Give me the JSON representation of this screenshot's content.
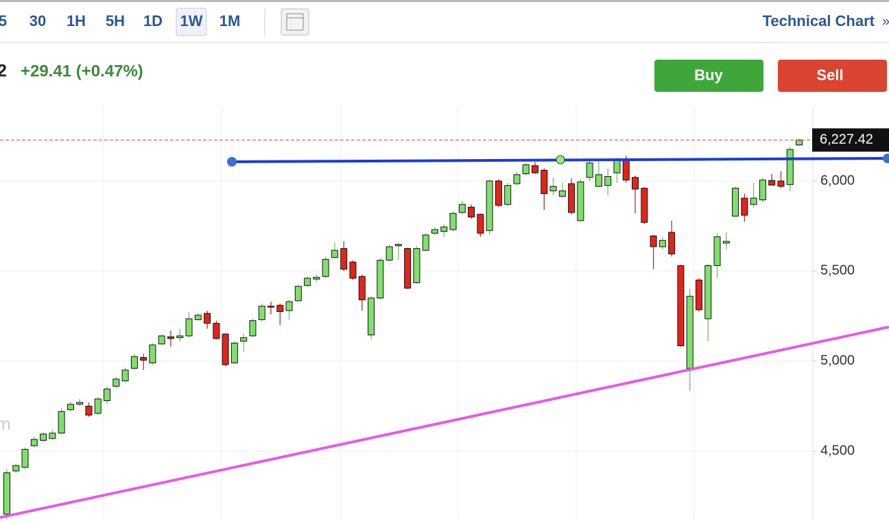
{
  "toolbar": {
    "intervals": [
      "5",
      "30",
      "1H",
      "5H",
      "1D",
      "1W",
      "1M"
    ],
    "active": "1W",
    "link": "Technical Chart",
    "more": "»"
  },
  "quote": {
    "last_fragment": "2",
    "change": "+29.41 (+0.47%)"
  },
  "actions": {
    "buy": "Buy",
    "sell": "Sell"
  },
  "watermark": "m",
  "chart_data": {
    "type": "candlestick",
    "up_color": "#7fe06c",
    "down_color": "#e3241b",
    "up_wick": "#7fb86f",
    "down_wick": "#b0302a",
    "ylim": [
      4120,
      6415
    ],
    "yticks": [
      {
        "value": 4500,
        "label": "4,500"
      },
      {
        "value": 5000,
        "label": "5,000"
      },
      {
        "value": 5500,
        "label": "5,500"
      },
      {
        "value": 6000,
        "label": "6,000"
      }
    ],
    "grid": true,
    "last_price": {
      "value": 6227.42,
      "label": "6,227.42"
    },
    "open": [
      4150,
      4390,
      4410,
      4530,
      4560,
      4570,
      4600,
      4730,
      4760,
      4750,
      4710,
      4780,
      4860,
      4890,
      4960,
      5020,
      4990,
      5095,
      5135,
      5130,
      5140,
      5230,
      5265,
      5210,
      5150,
      4990,
      5110,
      5140,
      5230,
      5305,
      5310,
      5280,
      5335,
      5420,
      5455,
      5470,
      5575,
      5625,
      5550,
      5470,
      5145,
      5350,
      5560,
      5640,
      5625,
      5435,
      5615,
      5710,
      5720,
      5730,
      5825,
      5855,
      5815,
      5725,
      6000,
      5870,
      5985,
      6040,
      6085,
      6060,
      5945,
      5915,
      5985,
      5780,
      6020,
      5970,
      5975,
      6045,
      6120,
      6020,
      5960,
      5695,
      5635,
      5715,
      5530,
      4960,
      5450,
      5235,
      5530,
      5655,
      5805,
      5905,
      5870,
      5895,
      6003,
      6000,
      5980,
      6200
    ],
    "high": [
      4400,
      4430,
      4520,
      4580,
      4605,
      4620,
      4740,
      4775,
      4790,
      4770,
      4800,
      4860,
      4910,
      4965,
      5040,
      5040,
      5100,
      5150,
      5170,
      5180,
      5270,
      5265,
      5280,
      5225,
      5155,
      5110,
      5150,
      5235,
      5320,
      5330,
      5320,
      5340,
      5425,
      5470,
      5480,
      5580,
      5660,
      5665,
      5560,
      5480,
      5360,
      5570,
      5645,
      5655,
      5630,
      5640,
      5710,
      5745,
      5760,
      5830,
      5890,
      5870,
      5820,
      6010,
      6010,
      5990,
      6050,
      6100,
      6105,
      6070,
      6020,
      5990,
      6015,
      6010,
      6115,
      6110,
      6070,
      6130,
      6140,
      6030,
      5965,
      5700,
      5690,
      5780,
      5535,
      5400,
      5460,
      5540,
      5710,
      5715,
      5970,
      5930,
      5990,
      6020,
      6040,
      6055,
      6190,
      6235
    ],
    "low": [
      4120,
      4380,
      4400,
      4520,
      4550,
      4560,
      4595,
      4720,
      4750,
      4690,
      4700,
      4760,
      4850,
      4880,
      4950,
      4950,
      4980,
      5090,
      5080,
      5110,
      5130,
      5225,
      5180,
      5120,
      4970,
      4985,
      5050,
      5135,
      5220,
      5260,
      5200,
      5230,
      5330,
      5410,
      5440,
      5460,
      5570,
      5500,
      5450,
      5280,
      5120,
      5345,
      5555,
      5560,
      5400,
      5430,
      5610,
      5700,
      5690,
      5720,
      5815,
      5790,
      5690,
      5700,
      5855,
      5860,
      5975,
      6030,
      6040,
      5840,
      5920,
      5905,
      5815,
      5775,
      6000,
      5965,
      5920,
      5990,
      5990,
      5820,
      5760,
      5510,
      5620,
      5580,
      5080,
      4835,
      5275,
      5110,
      5460,
      5620,
      5800,
      5775,
      5850,
      5880,
      5975,
      5960,
      5945,
      6195
    ],
    "close": [
      4380,
      4420,
      4510,
      4565,
      4595,
      4600,
      4720,
      4760,
      4770,
      4700,
      4790,
      4845,
      4900,
      4950,
      5025,
      5005,
      5090,
      5140,
      5125,
      5140,
      5235,
      5255,
      5210,
      5125,
      4980,
      5100,
      5130,
      5225,
      5305,
      5300,
      5275,
      5330,
      5415,
      5460,
      5465,
      5565,
      5615,
      5510,
      5460,
      5340,
      5350,
      5560,
      5635,
      5648,
      5405,
      5625,
      5700,
      5730,
      5745,
      5820,
      5870,
      5800,
      5710,
      6000,
      5865,
      5975,
      6035,
      6090,
      6045,
      5930,
      5970,
      5945,
      5825,
      5995,
      6100,
      6035,
      6025,
      6115,
      6005,
      5955,
      5770,
      5635,
      5670,
      5595,
      5085,
      5360,
      5285,
      5530,
      5690,
      5665,
      5960,
      5810,
      5905,
      6005,
      5977,
      5970,
      6175,
      6227.42
    ]
  }
}
